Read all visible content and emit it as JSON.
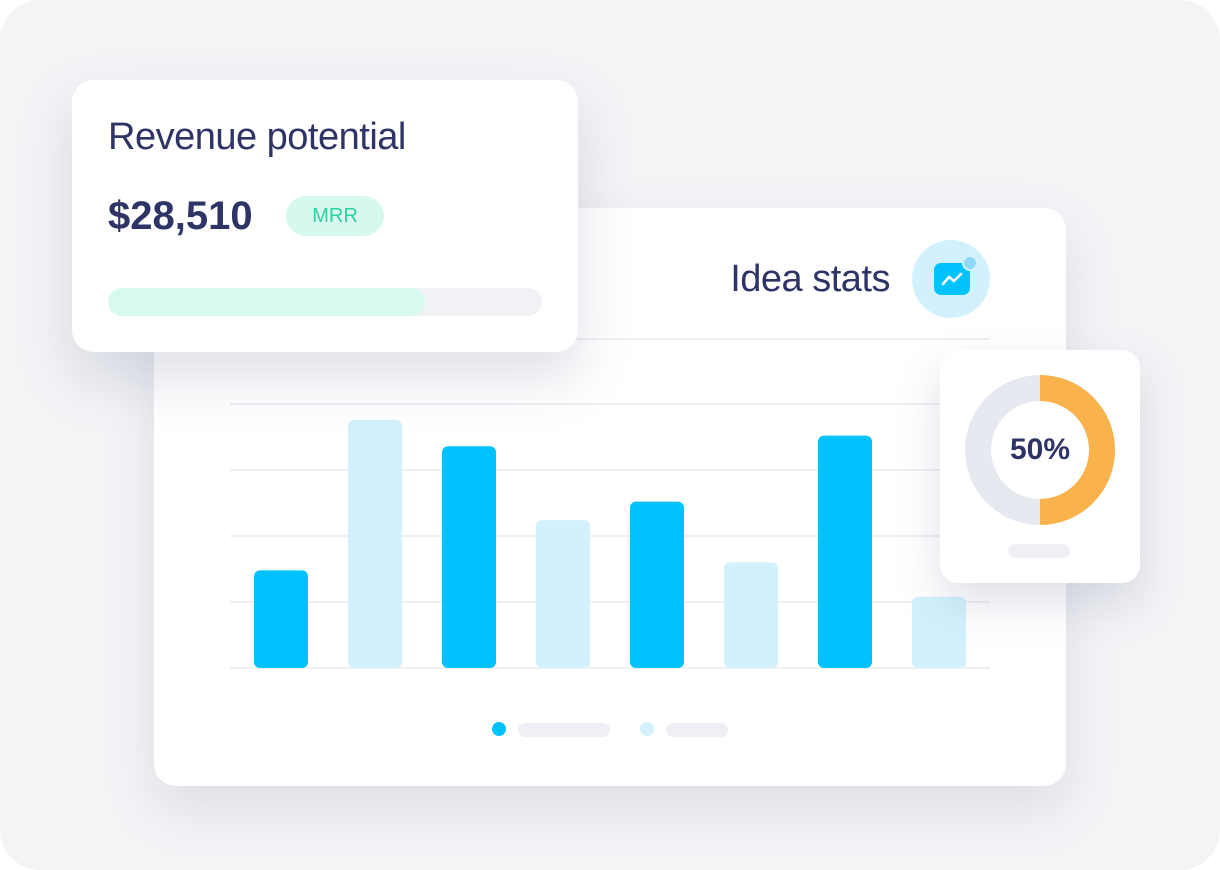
{
  "revenue": {
    "title": "Revenue potential",
    "amount": "$28,510",
    "badge": "MRR",
    "progress_fraction": 0.73
  },
  "stats": {
    "title": "Idea stats",
    "icon": "trend-chart-icon"
  },
  "donut": {
    "label": "50%",
    "value": 50
  },
  "chart_data": {
    "type": "bar",
    "categories": [
      "",
      "",
      "",
      "",
      "",
      "",
      "",
      ""
    ],
    "series": [
      {
        "color": "#00c2ff",
        "values": [
          37,
          null,
          84,
          null,
          63,
          null,
          88,
          null
        ]
      },
      {
        "color": "#d2f1fd",
        "values": [
          null,
          94,
          null,
          56,
          null,
          40,
          null,
          27
        ]
      }
    ],
    "ylim": [
      0,
      100
    ],
    "grid": true,
    "legend": "bottom-center"
  },
  "colors": {
    "primary": "#00c2ff",
    "light": "#d2f1fd",
    "text": "#2f3467",
    "mrr": "#2bd3a3",
    "donut_fill": "#f9b24c",
    "donut_track": "#e6e9ef"
  }
}
